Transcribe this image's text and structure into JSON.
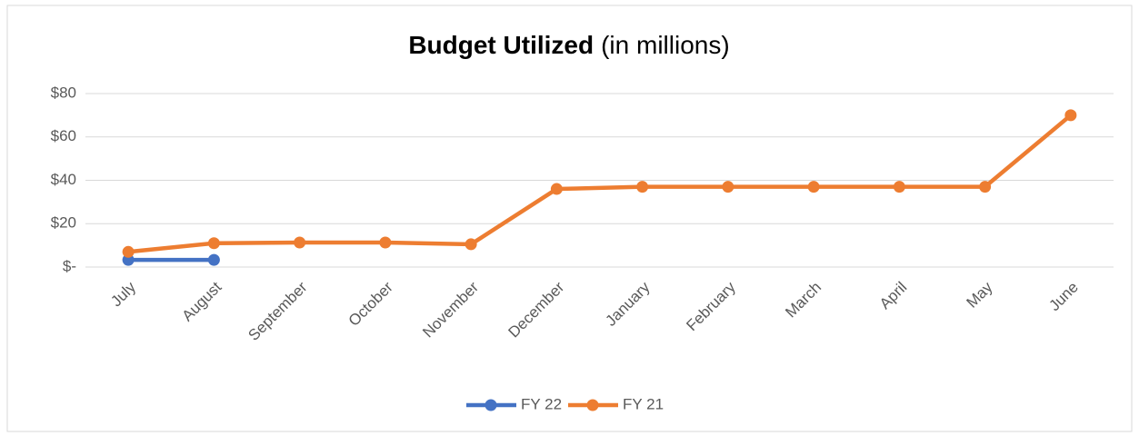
{
  "chart_data": {
    "type": "line",
    "title": "Budget Utilized",
    "subtitle": "(in millions)",
    "categories": [
      "July",
      "August",
      "September",
      "October",
      "November",
      "December",
      "January",
      "February",
      "March",
      "April",
      "May",
      "June"
    ],
    "series": [
      {
        "name": "FY 22",
        "color": "#4472c4",
        "values": [
          3.3,
          3.3,
          null,
          null,
          null,
          null,
          null,
          null,
          null,
          null,
          null,
          null
        ]
      },
      {
        "name": "FY 21",
        "color": "#ed7d31",
        "values": [
          7,
          11,
          11.3,
          11.3,
          10.5,
          36,
          37,
          37,
          37,
          37,
          37,
          70
        ]
      }
    ],
    "ylim": [
      0,
      80
    ],
    "yticks": [
      {
        "value": 0,
        "label": "$-"
      },
      {
        "value": 20,
        "label": "$20"
      },
      {
        "value": 40,
        "label": "$40"
      },
      {
        "value": 60,
        "label": "$60"
      },
      {
        "value": 80,
        "label": "$80"
      }
    ],
    "grid": true,
    "legend": "bottom"
  }
}
